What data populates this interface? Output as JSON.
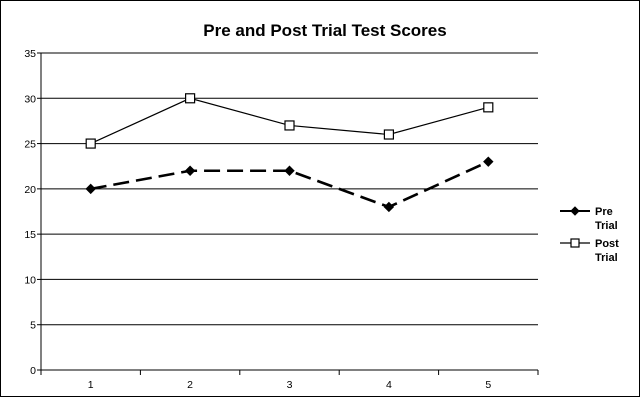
{
  "chart_data": {
    "type": "line",
    "title": "Pre and Post Trial Test Scores",
    "xlabel": "",
    "ylabel": "",
    "categories": [
      "1",
      "2",
      "3",
      "4",
      "5"
    ],
    "ylim": [
      0,
      35
    ],
    "yticks": [
      "0",
      "5",
      "10",
      "15",
      "20",
      "25",
      "30",
      "35"
    ],
    "grid": true,
    "legend_position": "right",
    "series": [
      {
        "name_lines": [
          "Pre",
          "Trial"
        ],
        "values": [
          20,
          22,
          22,
          18,
          23
        ],
        "line_style": "dashed",
        "marker": "filled-diamond",
        "color": "#000000"
      },
      {
        "name_lines": [
          "Post",
          "Trial"
        ],
        "values": [
          25,
          30,
          27,
          26,
          29
        ],
        "line_style": "solid",
        "marker": "open-square",
        "color": "#000000"
      }
    ]
  }
}
